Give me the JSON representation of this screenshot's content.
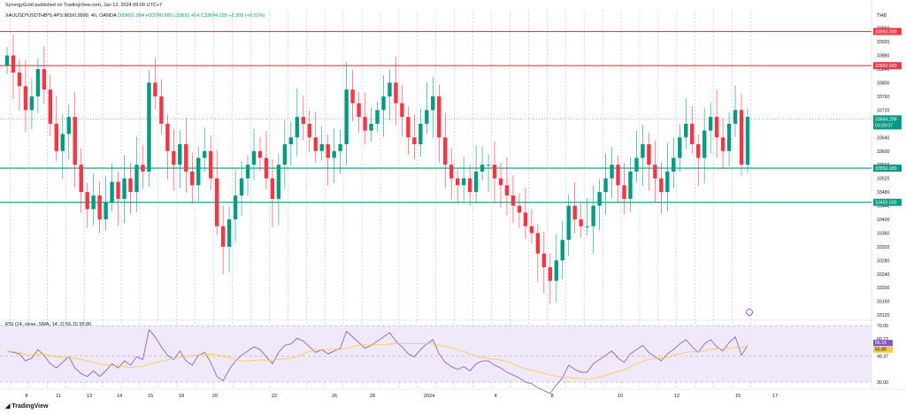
{
  "header": {
    "publisher": "SynergyGold published on TradingView.com, Jan 12, 2024 09:00 UTC+7",
    "symbol": "XAUUSD*USDTHB*0.4PS:965/0.9999, 4h, OANDA",
    "open": "O33691.994",
    "high": "H33780.990",
    "low": "L33691.414",
    "close": "C33694.299",
    "change": "+2.306 (+0.01%)",
    "currency": "THB"
  },
  "footer": {
    "logo_text": "TradingView"
  },
  "rsi_label": "RSI (14, close, SMA, 14, 2)  56.15  55.80",
  "colors": {
    "up": "#089981",
    "down": "#f23645",
    "red_line": "#f23645",
    "green_line": "#089981",
    "rsi_line": "#7e57c2",
    "rsi_ma": "#f7c948",
    "rsi_band": "#efe9fb"
  },
  "chart_data": [
    {
      "type": "candlestick",
      "title": "XAUUSD*USDTHB*0.4PS:965/0.9999, 4h, OANDA",
      "y_ticks": [
        33120,
        33160,
        33200,
        33240,
        33280,
        33320,
        33360,
        33400,
        33440,
        33480,
        33520,
        33560,
        33600,
        33640,
        33680,
        33720,
        33760,
        33800,
        33840,
        33880,
        33920,
        33960
      ],
      "ylim": [
        33110,
        33980
      ],
      "x_ticks": [
        "8",
        "11",
        "13",
        "14",
        "15",
        "18",
        "20",
        "22",
        "26",
        "28",
        "2024",
        "4",
        "8",
        "10",
        "12",
        "15",
        "17"
      ],
      "horizontal_levels": [
        {
          "value": 33950.0,
          "label": "33950.000",
          "color": "red"
        },
        {
          "value": 33850.0,
          "label": "33850.000",
          "color": "red"
        },
        {
          "value": 33550.0,
          "label": "33550.000",
          "color": "green"
        },
        {
          "value": 33450.0,
          "label": "33450.000",
          "color": "green"
        }
      ],
      "last_price": {
        "value": 33694.299,
        "label": "33694.299",
        "countdown": "03:59:07"
      },
      "closes": [
        33880,
        33830,
        33790,
        33720,
        33760,
        33840,
        33780,
        33680,
        33600,
        33650,
        33700,
        33560,
        33480,
        33430,
        33470,
        33400,
        33450,
        33510,
        33460,
        33520,
        33480,
        33560,
        33540,
        33800,
        33760,
        33680,
        33600,
        33560,
        33620,
        33540,
        33500,
        33580,
        33600,
        33520,
        33380,
        33320,
        33400,
        33470,
        33520,
        33560,
        33600,
        33580,
        33520,
        33460,
        33560,
        33620,
        33640,
        33700,
        33680,
        33640,
        33600,
        33620,
        33580,
        33600,
        33620,
        33780,
        33740,
        33700,
        33660,
        33680,
        33720,
        33760,
        33800,
        33740,
        33700,
        33640,
        33620,
        33680,
        33720,
        33760,
        33640,
        33560,
        33520,
        33500,
        33520,
        33480,
        33540,
        33560,
        33560,
        33520,
        33500,
        33470,
        33440,
        33420,
        33380,
        33360,
        33300,
        33260,
        33220,
        33280,
        33340,
        33440,
        33400,
        33380,
        33380,
        33440,
        33480,
        33520,
        33560,
        33500,
        33460,
        33540,
        33580,
        33620,
        33560,
        33520,
        33480,
        33540,
        33580,
        33640,
        33680,
        33620,
        33580,
        33660,
        33700,
        33640,
        33600,
        33680,
        33720,
        33560,
        33700
      ],
      "rsi": {
        "lim": [
          30,
          70
        ],
        "levels": [
          70,
          60.72,
          48.37,
          30
        ],
        "last_rsi": "56.15",
        "last_ma": "55.80",
        "values": [
          52,
          51,
          50,
          45,
          47,
          53,
          49,
          43,
          40,
          44,
          48,
          40,
          36,
          34,
          38,
          34,
          38,
          43,
          40,
          45,
          42,
          48,
          46,
          67,
          62,
          55,
          49,
          46,
          52,
          45,
          42,
          49,
          51,
          44,
          34,
          31,
          39,
          45,
          49,
          52,
          55,
          53,
          48,
          43,
          51,
          56,
          57,
          61,
          59,
          55,
          51,
          53,
          50,
          52,
          54,
          66,
          62,
          58,
          54,
          56,
          59,
          62,
          65,
          59,
          55,
          50,
          48,
          53,
          57,
          60,
          50,
          44,
          41,
          39,
          41,
          38,
          43,
          45,
          45,
          42,
          40,
          37,
          35,
          33,
          30,
          29,
          26,
          24,
          22,
          28,
          33,
          42,
          39,
          37,
          37,
          43,
          46,
          49,
          52,
          47,
          44,
          50,
          53,
          56,
          51,
          48,
          45,
          50,
          53,
          57,
          60,
          55,
          51,
          57,
          60,
          55,
          52,
          58,
          62,
          49,
          56
        ]
      }
    }
  ]
}
